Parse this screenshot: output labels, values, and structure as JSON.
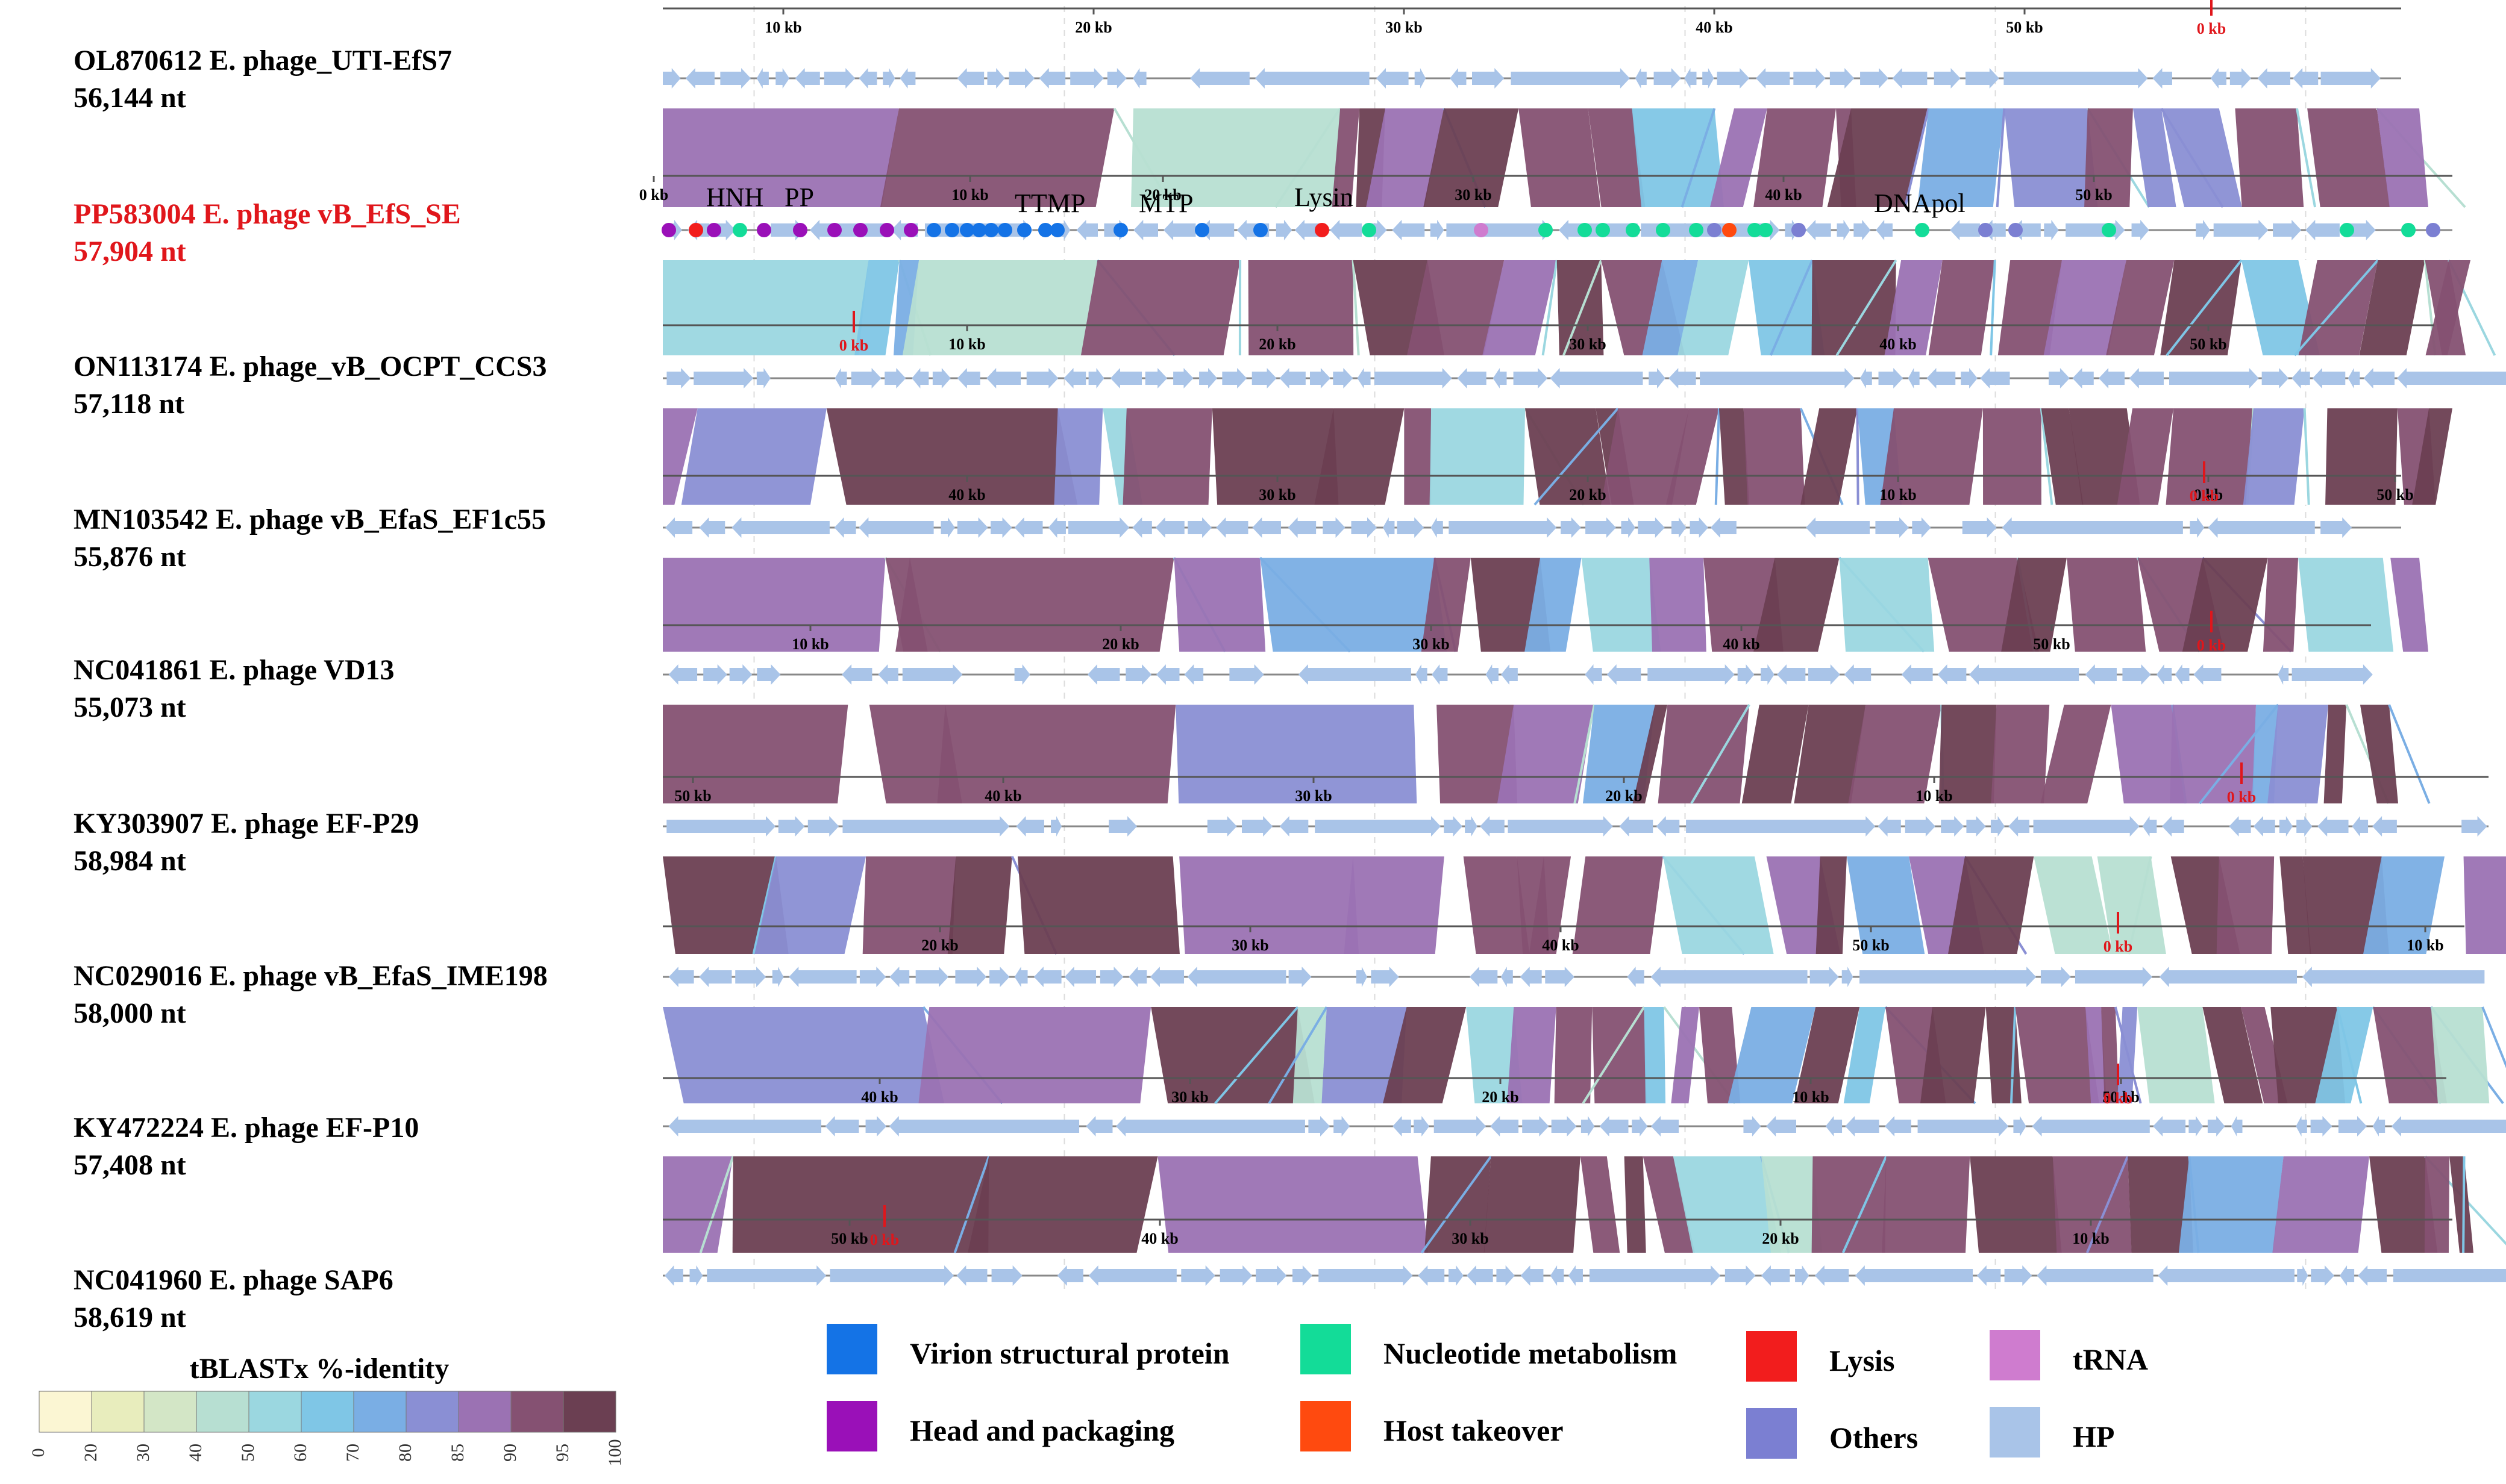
{
  "genomes": [
    {
      "accession": "OL870612",
      "name": "E. phage_UTI-EfS7",
      "length": "56,144 nt",
      "highlight": false
    },
    {
      "accession": "PP583004",
      "name": "E. phage vB_EfS_SE",
      "length": "57,904 nt",
      "highlight": true
    },
    {
      "accession": "ON113174",
      "name": "E. phage_vB_OCPT_CCS3",
      "length": "57,118 nt",
      "highlight": false
    },
    {
      "accession": "MN103542",
      "name": "E. phage vB_EfaS_EF1c55",
      "length": "55,876 nt",
      "highlight": false
    },
    {
      "accession": "NC041861",
      "name": "E. phage VD13",
      "length": "55,073 nt",
      "highlight": false
    },
    {
      "accession": "KY303907",
      "name": "E. phage EF-P29",
      "length": "58,984 nt",
      "highlight": false
    },
    {
      "accession": "NC029016",
      "name": "E. phage vB_EfaS_IME198",
      "length": "58,000 nt",
      "highlight": false
    },
    {
      "accession": "KY472224",
      "name": "E. phage EF-P10",
      "length": "57,408 nt",
      "highlight": false
    },
    {
      "accession": "NC041960",
      "name": "E. phage SAP6",
      "length": "58,619 nt",
      "highlight": false
    }
  ],
  "scales": [
    {
      "labels": [
        "10 kb",
        "20 kb",
        "30 kb",
        "40 kb",
        "50 kb"
      ],
      "values": [
        10,
        20,
        30,
        40,
        50
      ],
      "origin": 0,
      "per_kb": 19.4,
      "zero_label": "0 kb",
      "zero_kb": 50.6
    },
    {
      "labels": [
        "0 kb",
        "10 kb",
        "20 kb",
        "30 kb",
        "40 kb",
        "50 kb"
      ],
      "values": [
        0,
        10,
        20,
        30,
        40,
        50
      ],
      "origin": 0,
      "per_kb": 19.4,
      "zero_label": "",
      "zero_kb": null
    },
    {
      "labels": [
        "10 kb",
        "20 kb",
        "30 kb",
        "40 kb",
        "50 kb"
      ],
      "values": [
        10,
        20,
        30,
        40,
        50
      ],
      "origin": 0,
      "per_kb": 19.4,
      "zero_label": "0 kb",
      "zero_kb": 6.4
    },
    {
      "labels": [
        "40 kb",
        "30 kb",
        "20 kb",
        "10 kb",
        "0 kb",
        "50 kb"
      ],
      "values": [
        40,
        30,
        20,
        10,
        0,
        50
      ],
      "origin": 0,
      "per_kb": -19.4,
      "zero_label": "0 kb",
      "zero_kb": null
    },
    {
      "labels": [
        "10 kb",
        "20 kb",
        "30 kb",
        "40 kb",
        "50 kb"
      ],
      "values": [
        10,
        20,
        30,
        40,
        50
      ],
      "origin": 0,
      "per_kb": 19.4,
      "zero_label": "0 kb",
      "zero_kb": 50.2
    },
    {
      "labels": [
        "50 kb",
        "40 kb",
        "30 kb",
        "20 kb",
        "10 kb"
      ],
      "values": [
        50,
        40,
        30,
        20,
        10
      ],
      "origin": 0,
      "per_kb": -19.4,
      "zero_label": "0 kb",
      "zero_kb": null
    },
    {
      "labels": [
        "20 kb",
        "30 kb",
        "40 kb",
        "50 kb",
        "10 kb"
      ],
      "values": [
        20,
        30,
        40,
        50,
        10
      ],
      "origin": 0,
      "per_kb": 19.4,
      "zero_label": "0 kb",
      "zero_kb": null
    },
    {
      "labels": [
        "40 kb",
        "30 kb",
        "20 kb",
        "10 kb",
        "50 kb"
      ],
      "values": [
        40,
        30,
        20,
        10,
        50
      ],
      "origin": 0,
      "per_kb": -19.4,
      "zero_label": "0 kb",
      "zero_kb": null
    },
    {
      "labels": [
        "50 kb",
        "40 kb",
        "30 kb",
        "20 kb",
        "10 kb"
      ],
      "values": [
        50,
        40,
        30,
        20,
        10
      ],
      "origin": 0,
      "per_kb": -19.4,
      "zero_label": "0 kb",
      "zero_kb": null
    }
  ],
  "annotations": [
    "HNH",
    "PP",
    "TTMP",
    "MTP",
    "Lysin",
    "DNApol"
  ],
  "identity_legend": {
    "title": "tBLASTx %-identity",
    "ticks": [
      "0",
      "20",
      "30",
      "40",
      "50",
      "60",
      "70",
      "80",
      "85",
      "90",
      "95",
      "100"
    ],
    "colors": [
      "#fbf6d3",
      "#e8edbd",
      "#d3e6c6",
      "#b7dfd2",
      "#9bd7e0",
      "#7fc6e6",
      "#7aaee4",
      "#8a8fd4",
      "#9b72b3",
      "#855172",
      "#6b3f52"
    ]
  },
  "categories": [
    {
      "label": "Virion structural protein",
      "color": "#1473e6"
    },
    {
      "label": "Head and packaging",
      "color": "#9a10b8"
    },
    {
      "label": "Nucleotide metabolism",
      "color": "#13dc98"
    },
    {
      "label": "Host takeover",
      "color": "#ff4a0f"
    },
    {
      "label": "Lysis",
      "color": "#f21d1d"
    },
    {
      "label": "Others",
      "color": "#7b7fd2"
    },
    {
      "label": "tRNA",
      "color": "#cf7ccf"
    },
    {
      "label": "HP",
      "color": "#a9c4e8"
    }
  ]
}
